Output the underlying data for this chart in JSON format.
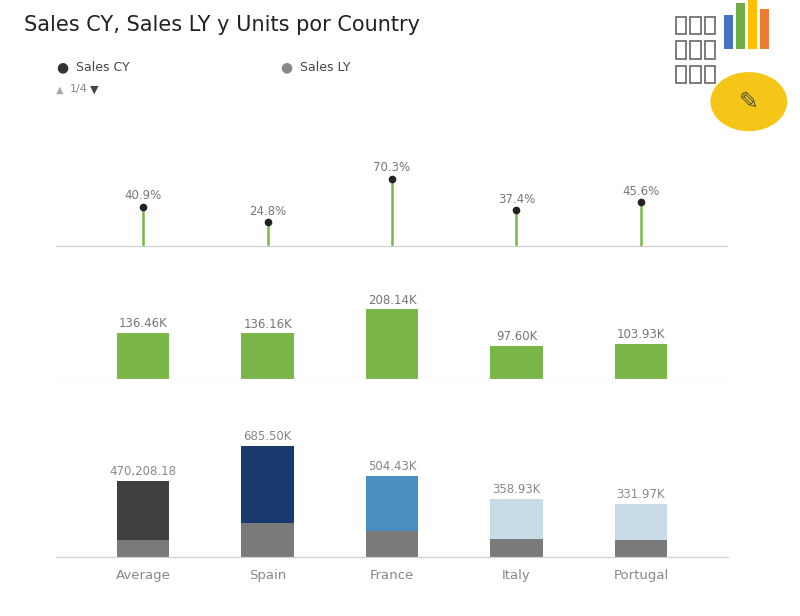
{
  "title": "Sales CY, Sales LY y Units por Country",
  "categories": [
    "Average",
    "Spain",
    "France",
    "Italy",
    "Portugal"
  ],
  "legend_cy": {
    "label": "Sales CY",
    "color": "#333333"
  },
  "legend_ly": {
    "label": "Sales LY",
    "color": "#888888"
  },
  "lollipop_values": [
    40.9,
    24.8,
    70.3,
    37.4,
    45.6
  ],
  "lollipop_labels": [
    "40.9%",
    "24.8%",
    "70.3%",
    "37.4%",
    "45.6%"
  ],
  "green_bar_values": [
    136.46,
    136.16,
    208.14,
    97.6,
    103.93
  ],
  "green_bar_labels": [
    "136.46K",
    "136.16K",
    "208.14K",
    "97.60K",
    "103.93K"
  ],
  "green_bar_color": "#7ab648",
  "stacked_total_values": [
    470208.18,
    685500,
    504430,
    358930,
    331970
  ],
  "stacked_total_labels": [
    "470,208.18",
    "685.50K",
    "504.43K",
    "358.93K",
    "331.97K"
  ],
  "stacked_bottom_values": [
    110000,
    210000,
    165000,
    115000,
    105000
  ],
  "stacked_bottom_color": "#7a7a7a",
  "stacked_top_colors": [
    "#404040",
    "#1a3a6e",
    "#4a8ec2",
    "#c8dce8",
    "#c8dce8"
  ],
  "background_color": "#ffffff",
  "separator_color": "#d0d0d0",
  "title_fontsize": 15,
  "axis_label_fontsize": 9.5,
  "value_label_fontsize": 8.5,
  "bar_width": 0.42
}
